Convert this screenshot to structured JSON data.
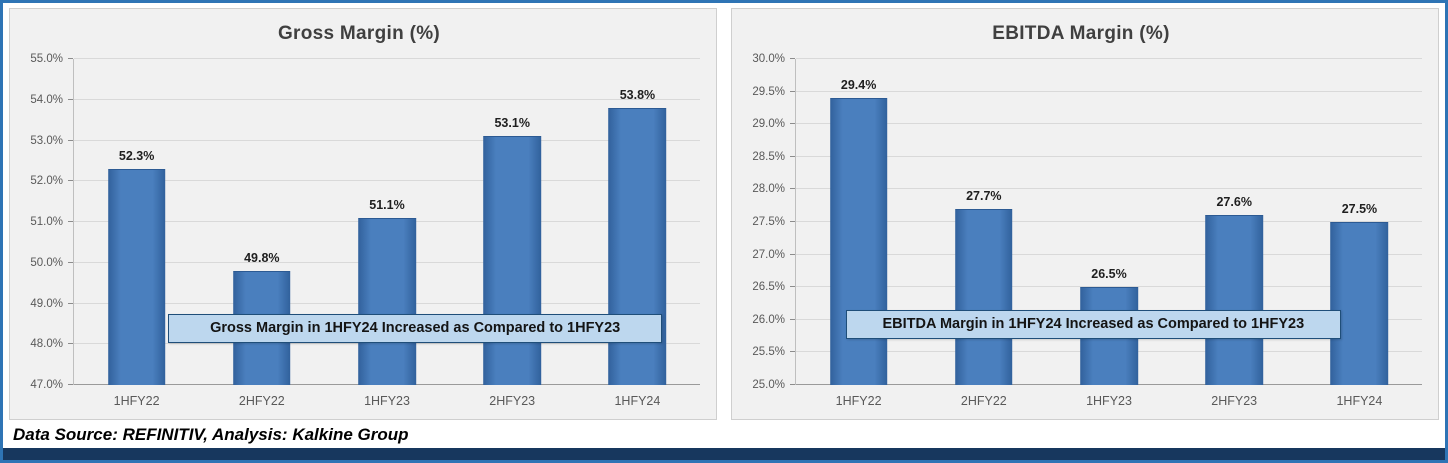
{
  "frame": {
    "border_color": "#2E74B5",
    "bottom_bar_color": "#17375E"
  },
  "footer": {
    "text": "Data Source: REFINITIV, Analysis: Kalkine Group"
  },
  "chart_data": [
    {
      "type": "bar",
      "title": "Gross Margin (%)",
      "categories": [
        "1HFY22",
        "2HFY22",
        "1HFY23",
        "2HFY23",
        "1HFY24"
      ],
      "values": [
        52.3,
        49.8,
        51.1,
        53.1,
        53.8
      ],
      "value_labels": [
        "52.3%",
        "49.8%",
        "51.1%",
        "53.1%",
        "53.8%"
      ],
      "ylim": [
        47.0,
        55.0
      ],
      "ytick_step": 1.0,
      "ytick_labels": [
        "47.0%",
        "48.0%",
        "49.0%",
        "50.0%",
        "51.0%",
        "52.0%",
        "53.0%",
        "54.0%",
        "55.0%"
      ],
      "xlabel": "",
      "ylabel": "",
      "grid": true,
      "legend": "none",
      "annotation": "Gross Margin in 1HFY24 Increased as Compared to 1HFY23",
      "bar_color_main": "#4A7FBE",
      "bar_color_edge": "#31619C"
    },
    {
      "type": "bar",
      "title": "EBITDA Margin (%)",
      "categories": [
        "1HFY22",
        "2HFY22",
        "1HFY23",
        "2HFY23",
        "1HFY24"
      ],
      "values": [
        29.4,
        27.7,
        26.5,
        27.6,
        27.5
      ],
      "value_labels": [
        "29.4%",
        "27.7%",
        "26.5%",
        "27.6%",
        "27.5%"
      ],
      "ylim": [
        25.0,
        30.0
      ],
      "ytick_step": 0.5,
      "ytick_labels": [
        "25.0%",
        "25.5%",
        "26.0%",
        "26.5%",
        "27.0%",
        "27.5%",
        "28.0%",
        "28.5%",
        "29.0%",
        "29.5%",
        "30.0%"
      ],
      "xlabel": "",
      "ylabel": "",
      "grid": true,
      "legend": "none",
      "annotation": "EBITDA Margin in 1HFY24 Increased as Compared to 1HFY23",
      "bar_color_main": "#4A7FBE",
      "bar_color_edge": "#31619C"
    }
  ]
}
